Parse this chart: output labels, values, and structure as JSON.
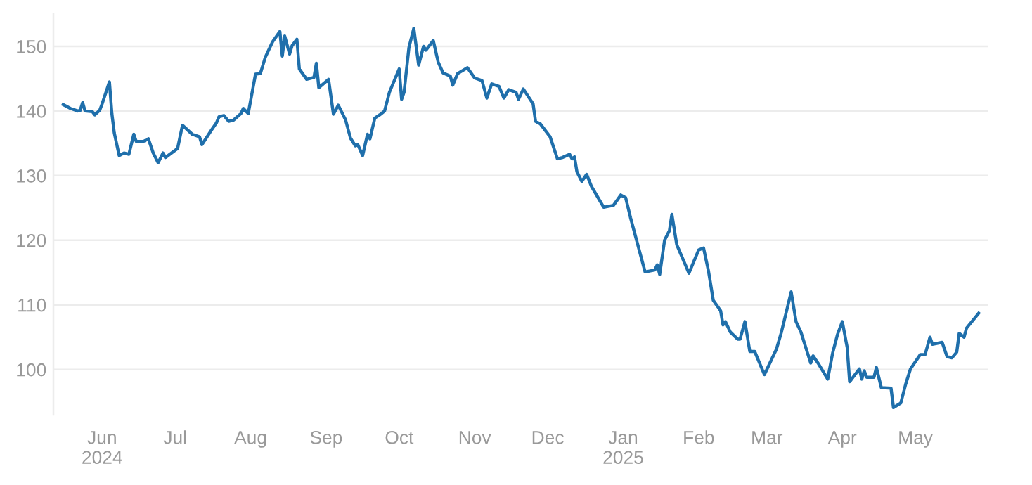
{
  "chart_data": {
    "type": "line",
    "x": [
      "2024-05-16",
      "2024-05-19",
      "2024-05-22",
      "2024-05-23",
      "2024-05-24",
      "2024-05-25",
      "2024-05-28",
      "2024-05-29",
      "2024-05-31",
      "2024-06-01",
      "2024-06-04",
      "2024-06-05",
      "2024-06-06",
      "2024-06-08",
      "2024-06-09",
      "2024-06-10",
      "2024-06-12",
      "2024-06-14",
      "2024-06-15",
      "2024-06-18",
      "2024-06-20",
      "2024-06-22",
      "2024-06-24",
      "2024-06-26",
      "2024-06-27",
      "2024-07-02",
      "2024-07-04",
      "2024-07-08",
      "2024-07-11",
      "2024-07-12",
      "2024-07-16",
      "2024-07-18",
      "2024-07-19",
      "2024-07-21",
      "2024-07-23",
      "2024-07-25",
      "2024-07-28",
      "2024-07-29",
      "2024-07-31",
      "2024-08-03",
      "2024-08-05",
      "2024-08-07",
      "2024-08-10",
      "2024-08-13",
      "2024-08-14",
      "2024-08-15",
      "2024-08-17",
      "2024-08-18",
      "2024-08-20",
      "2024-08-21",
      "2024-08-24",
      "2024-08-27",
      "2024-08-28",
      "2024-08-29",
      "2024-09-02",
      "2024-09-04",
      "2024-09-06",
      "2024-09-09",
      "2024-09-11",
      "2024-09-13",
      "2024-09-14",
      "2024-09-16",
      "2024-09-18",
      "2024-09-19",
      "2024-09-21",
      "2024-09-23",
      "2024-09-25",
      "2024-09-27",
      "2024-09-29",
      "2024-10-01",
      "2024-10-02",
      "2024-10-03",
      "2024-10-05",
      "2024-10-07",
      "2024-10-09",
      "2024-10-11",
      "2024-10-12",
      "2024-10-15",
      "2024-10-17",
      "2024-10-19",
      "2024-10-22",
      "2024-10-23",
      "2024-10-25",
      "2024-10-29",
      "2024-11-01",
      "2024-11-04",
      "2024-11-06",
      "2024-11-08",
      "2024-11-11",
      "2024-11-13",
      "2024-11-15",
      "2024-11-18",
      "2024-11-19",
      "2024-11-21",
      "2024-11-25",
      "2024-11-26",
      "2024-11-28",
      "2024-12-02",
      "2024-12-05",
      "2024-12-07",
      "2024-12-10",
      "2024-12-11",
      "2024-12-12",
      "2024-12-13",
      "2024-12-15",
      "2024-12-17",
      "2024-12-19",
      "2024-12-24",
      "2024-12-28",
      "2024-12-31",
      "2025-01-02",
      "2025-01-04",
      "2025-01-10",
      "2025-01-14",
      "2025-01-15",
      "2025-01-16",
      "2025-01-18",
      "2025-01-20",
      "2025-01-21",
      "2025-01-23",
      "2025-01-28",
      "2025-02-01",
      "2025-02-03",
      "2025-02-05",
      "2025-02-07",
      "2025-02-10",
      "2025-02-11",
      "2025-02-12",
      "2025-02-14",
      "2025-02-17",
      "2025-02-18",
      "2025-02-20",
      "2025-02-22",
      "2025-02-24",
      "2025-02-28",
      "2025-03-05",
      "2025-03-07",
      "2025-03-11",
      "2025-03-13",
      "2025-03-15",
      "2025-03-19",
      "2025-03-20",
      "2025-03-22",
      "2025-03-26",
      "2025-03-28",
      "2025-03-30",
      "2025-04-01",
      "2025-04-03",
      "2025-04-04",
      "2025-04-08",
      "2025-04-09",
      "2025-04-10",
      "2025-04-11",
      "2025-04-14",
      "2025-04-15",
      "2025-04-17",
      "2025-04-21",
      "2025-04-22",
      "2025-04-25",
      "2025-04-27",
      "2025-04-29",
      "2025-05-03",
      "2025-05-05",
      "2025-05-07",
      "2025-05-08",
      "2025-05-12",
      "2025-05-14",
      "2025-05-16",
      "2025-05-18",
      "2025-05-19",
      "2025-05-21",
      "2025-05-22",
      "2025-05-27"
    ],
    "series": [
      {
        "color": "#1f6fab",
        "values": [
          141.0,
          140.4,
          140.0,
          140.1,
          141.3,
          140.0,
          139.9,
          139.4,
          140.1,
          141.1,
          144.5,
          139.6,
          136.6,
          133.1,
          133.3,
          133.5,
          133.3,
          136.4,
          135.3,
          135.3,
          135.7,
          133.5,
          132.0,
          133.5,
          132.8,
          134.2,
          137.8,
          136.4,
          136.0,
          134.8,
          137.1,
          138.2,
          139.1,
          139.3,
          138.4,
          138.6,
          139.6,
          140.4,
          139.6,
          145.7,
          145.8,
          148.3,
          150.7,
          152.3,
          148.5,
          151.6,
          148.8,
          150.1,
          151.1,
          146.5,
          144.9,
          145.2,
          147.4,
          143.6,
          144.9,
          139.5,
          140.9,
          138.6,
          135.8,
          134.6,
          134.8,
          133.1,
          136.4,
          135.7,
          138.9,
          139.4,
          140.0,
          142.9,
          144.7,
          146.5,
          141.8,
          142.9,
          149.8,
          152.8,
          147.1,
          150.0,
          149.4,
          150.9,
          147.6,
          145.9,
          145.4,
          144.0,
          145.8,
          146.7,
          145.1,
          144.7,
          142.0,
          144.2,
          143.8,
          142.0,
          143.3,
          142.9,
          141.8,
          143.4,
          141.1,
          138.4,
          138.0,
          136.0,
          132.6,
          132.8,
          133.3,
          132.6,
          132.9,
          130.6,
          129.1,
          130.2,
          128.3,
          125.1,
          125.4,
          127.0,
          126.6,
          123.5,
          115.1,
          115.4,
          116.2,
          114.7,
          120.0,
          121.5,
          124.0,
          119.3,
          114.9,
          118.5,
          118.8,
          115.3,
          110.7,
          109.1,
          106.9,
          107.4,
          105.8,
          104.7,
          104.7,
          107.4,
          102.8,
          102.8,
          99.2,
          103.2,
          105.8,
          112.0,
          107.4,
          105.8,
          101.0,
          102.1,
          101.0,
          98.5,
          102.5,
          105.4,
          107.4,
          103.4,
          98.1,
          100.1,
          98.5,
          99.8,
          98.8,
          98.8,
          100.3,
          97.2,
          97.1,
          94.1,
          94.8,
          97.7,
          100.1,
          102.3,
          102.3,
          105.0,
          103.9,
          104.2,
          102.0,
          101.8,
          102.7,
          105.6,
          105.0,
          106.4,
          108.7
        ]
      }
    ],
    "xlim": [
      "2024-05-12",
      "2025-05-31"
    ],
    "xticks": [
      {
        "value": "2024-06-01",
        "label": "Jun\n2024"
      },
      {
        "value": "2024-07-01",
        "label": "Jul"
      },
      {
        "value": "2024-08-01",
        "label": "Aug"
      },
      {
        "value": "2024-09-01",
        "label": "Sep"
      },
      {
        "value": "2024-10-01",
        "label": "Oct"
      },
      {
        "value": "2024-11-01",
        "label": "Nov"
      },
      {
        "value": "2024-12-01",
        "label": "Dec"
      },
      {
        "value": "2025-01-01",
        "label": "Jan\n2025"
      },
      {
        "value": "2025-02-01",
        "label": "Feb"
      },
      {
        "value": "2025-03-01",
        "label": "Mar"
      },
      {
        "value": "2025-04-01",
        "label": "Apr"
      },
      {
        "value": "2025-05-01",
        "label": "May"
      }
    ],
    "ylim": [
      93,
      155
    ],
    "yticks": [
      100,
      110,
      120,
      130,
      140,
      150
    ],
    "grid": "y",
    "line_style": "solid"
  }
}
